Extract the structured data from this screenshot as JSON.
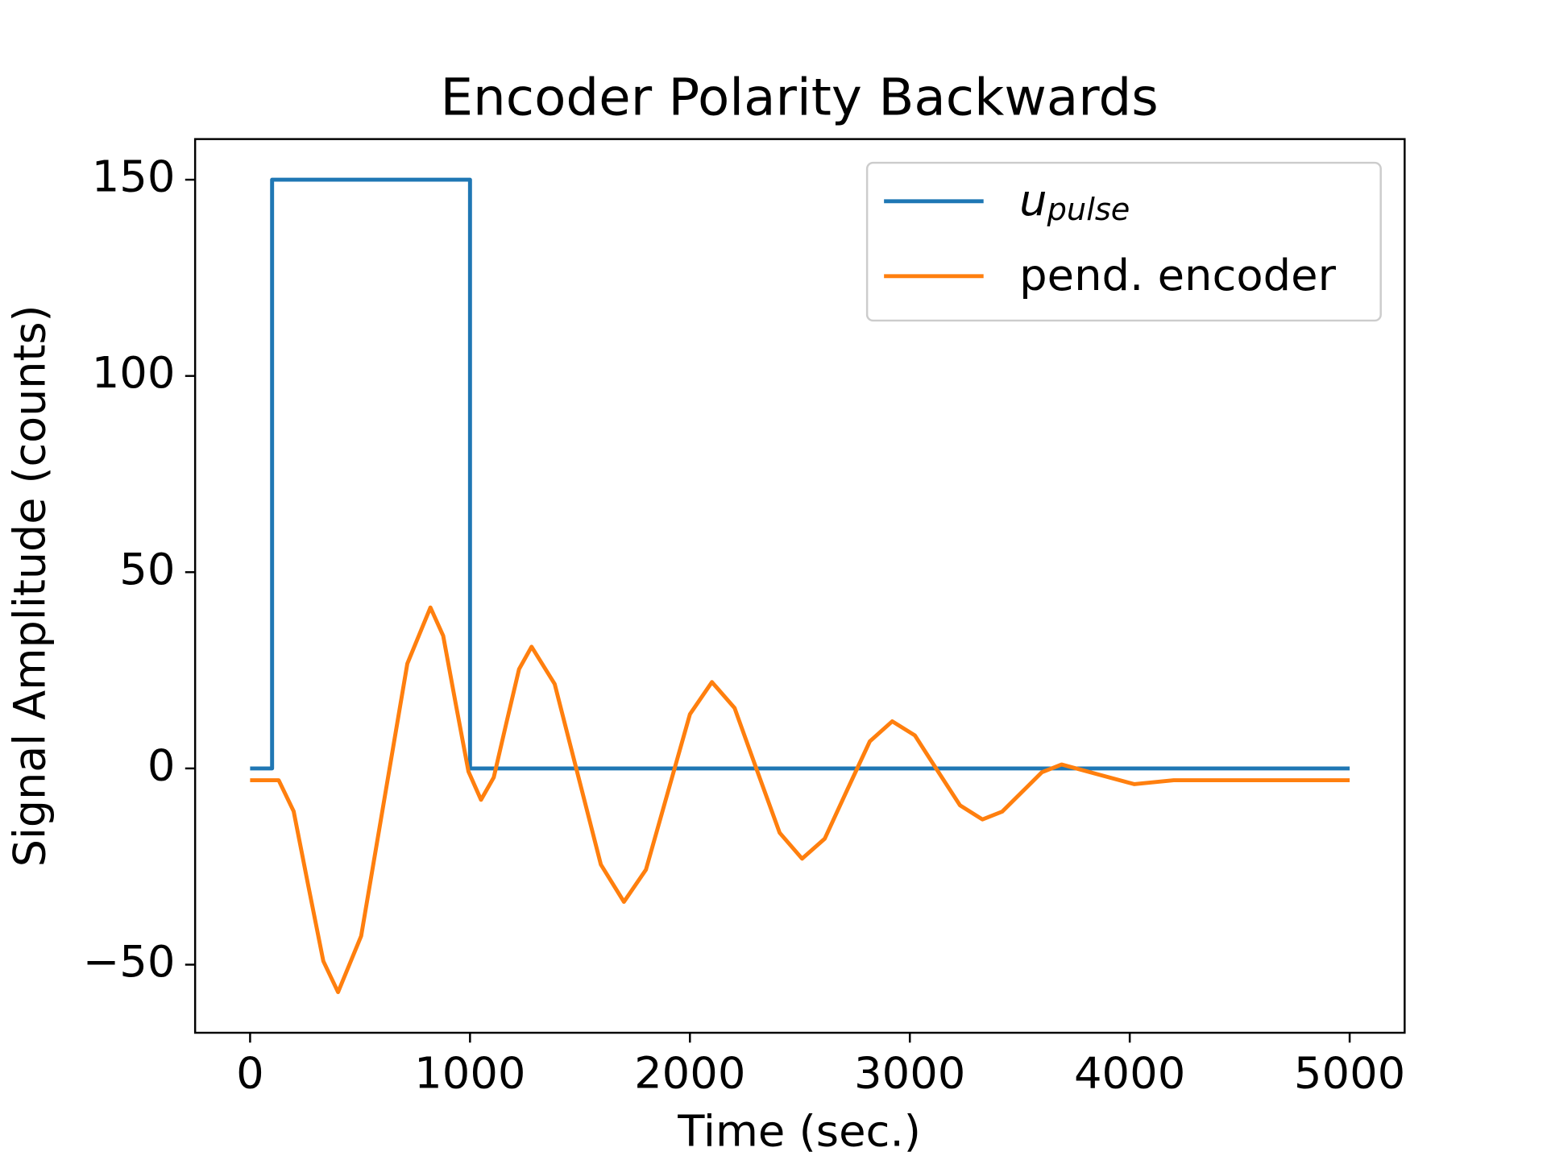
{
  "chart_data": {
    "type": "line",
    "title": "Encoder Polarity Backwards",
    "xlabel": "Time (sec.)",
    "ylabel": "Signal Amplitude (counts)",
    "xlim": [
      -250,
      5250
    ],
    "ylim": [
      -67.35,
      160.35
    ],
    "xticks": [
      0,
      1000,
      2000,
      3000,
      4000,
      5000
    ],
    "yticks": [
      {
        "value": -50,
        "label": "−50"
      },
      0,
      50,
      100,
      150
    ],
    "legend": "upper right",
    "grid": false,
    "series": [
      {
        "name": "u_pulse",
        "color": "#1f77b4",
        "x": [
          0,
          100,
          100,
          1000,
          1000,
          5000
        ],
        "values": [
          0,
          0,
          150,
          150,
          0,
          0
        ]
      },
      {
        "name": "pend. encoder",
        "color": "#ff7f0e",
        "x": [
          0,
          130,
          198,
          265,
          333,
          400,
          505,
          610,
          715,
          820,
          878,
          935,
          993,
          1050,
          1108,
          1165,
          1223,
          1280,
          1385,
          1490,
          1595,
          1700,
          1800,
          1900,
          2000,
          2100,
          2203,
          2305,
          2408,
          2510,
          2613,
          2715,
          2818,
          2920,
          3023,
          3125,
          3228,
          3330,
          3420,
          3510,
          3600,
          3690,
          3855,
          4020,
          4200,
          5000
        ],
        "values": [
          -3,
          -3,
          -10.9,
          -30,
          -49.1,
          -57,
          -42.7,
          -8,
          26.7,
          41,
          33.8,
          16.5,
          -0.8,
          -8,
          -2.3,
          11.5,
          25.3,
          31,
          21.5,
          -1.5,
          -24.5,
          -34,
          -25.8,
          -6,
          13.8,
          22,
          15.4,
          -0.5,
          -16.4,
          -23,
          -17.9,
          -5.5,
          6.9,
          12,
          8.4,
          -0.5,
          -9.4,
          -13,
          -11,
          -6,
          -1,
          1,
          -1.5,
          -4,
          -3,
          -3
        ]
      }
    ]
  }
}
